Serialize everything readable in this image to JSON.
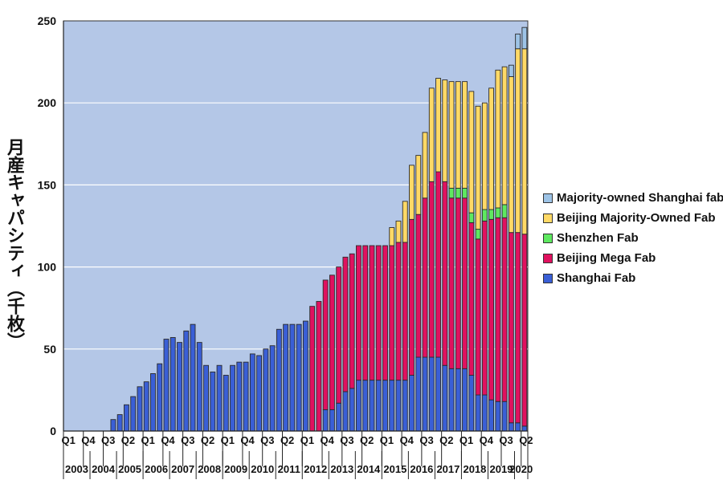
{
  "chart_data": {
    "type": "bar",
    "stacked": true,
    "title": "",
    "xlabel": "",
    "ylabel": "月産キャパシティ（千枚）",
    "ylim": [
      0,
      250
    ],
    "yticks": [
      0,
      50,
      100,
      150,
      200,
      250
    ],
    "grid": true,
    "legend_position": "right",
    "plot_background": "#b4c7e7",
    "x_quarter_labels": [
      "Q1",
      "Q4",
      "Q3",
      "Q2",
      "Q1",
      "Q4",
      "Q3",
      "Q2",
      "Q1",
      "Q4",
      "Q3",
      "Q2",
      "Q1",
      "Q4",
      "Q3",
      "Q2",
      "Q1",
      "Q4",
      "Q3",
      "Q2",
      "Q1",
      "Q4",
      "Q3",
      "Q2"
    ],
    "x_year_labels": [
      "2003",
      "2004",
      "2005",
      "2006",
      "2007",
      "2008",
      "2009",
      "2010",
      "2011",
      "2012",
      "2013",
      "2014",
      "2015",
      "2016",
      "2017",
      "2018",
      "2019",
      "2020"
    ],
    "categories": [
      "2003Q1",
      "2003Q2",
      "2003Q3",
      "2003Q4",
      "2004Q1",
      "2004Q2",
      "2004Q3",
      "2004Q4",
      "2005Q1",
      "2005Q2",
      "2005Q3",
      "2005Q4",
      "2006Q1",
      "2006Q2",
      "2006Q3",
      "2006Q4",
      "2007Q1",
      "2007Q2",
      "2007Q3",
      "2007Q4",
      "2008Q1",
      "2008Q2",
      "2008Q3",
      "2008Q4",
      "2009Q1",
      "2009Q2",
      "2009Q3",
      "2009Q4",
      "2010Q1",
      "2010Q2",
      "2010Q3",
      "2010Q4",
      "2011Q1",
      "2011Q2",
      "2011Q3",
      "2011Q4",
      "2012Q1",
      "2012Q2",
      "2012Q3",
      "2012Q4",
      "2013Q1",
      "2013Q2",
      "2013Q3",
      "2013Q4",
      "2014Q1",
      "2014Q2",
      "2014Q3",
      "2014Q4",
      "2015Q1",
      "2015Q2",
      "2015Q3",
      "2015Q4",
      "2016Q1",
      "2016Q2",
      "2016Q3",
      "2016Q4",
      "2017Q1",
      "2017Q2",
      "2017Q3",
      "2017Q4",
      "2018Q1",
      "2018Q2",
      "2018Q3",
      "2018Q4",
      "2019Q1",
      "2019Q2",
      "2019Q3",
      "2019Q4",
      "2020Q1",
      "2020Q2"
    ],
    "series": [
      {
        "name": "Shanghai Fab",
        "color": "#3a5fd6",
        "values": [
          0,
          0,
          0,
          0,
          0,
          0,
          0,
          7,
          10,
          16,
          21,
          27,
          30,
          35,
          41,
          56,
          57,
          54,
          61,
          65,
          54,
          40,
          36,
          40,
          34,
          40,
          42,
          42,
          47,
          46,
          50,
          52,
          62,
          65,
          65,
          65,
          67,
          0,
          0,
          13,
          13,
          17,
          24,
          26,
          31,
          31,
          31,
          31,
          31,
          31,
          31,
          31,
          34,
          45,
          45,
          45,
          45,
          40,
          38,
          38,
          38,
          34,
          22,
          22,
          19,
          18,
          18,
          5,
          5,
          3
        ]
      },
      {
        "name": "Beijing Mega Fab",
        "color": "#e0115f",
        "values": [
          0,
          0,
          0,
          0,
          0,
          0,
          0,
          0,
          0,
          0,
          0,
          0,
          0,
          0,
          0,
          0,
          0,
          0,
          0,
          0,
          0,
          0,
          0,
          0,
          0,
          0,
          0,
          0,
          0,
          0,
          0,
          0,
          0,
          0,
          0,
          0,
          0,
          76,
          79,
          79,
          82,
          83,
          82,
          82,
          82,
          82,
          82,
          82,
          82,
          82,
          84,
          84,
          95,
          87,
          97,
          107,
          113,
          112,
          104,
          104,
          104,
          93,
          95,
          106,
          110,
          112,
          112,
          116,
          116,
          117
        ]
      },
      {
        "name": "Shenzhen Fab",
        "color": "#5ee860",
        "values": [
          0,
          0,
          0,
          0,
          0,
          0,
          0,
          0,
          0,
          0,
          0,
          0,
          0,
          0,
          0,
          0,
          0,
          0,
          0,
          0,
          0,
          0,
          0,
          0,
          0,
          0,
          0,
          0,
          0,
          0,
          0,
          0,
          0,
          0,
          0,
          0,
          0,
          0,
          0,
          0,
          0,
          0,
          0,
          0,
          0,
          0,
          0,
          0,
          0,
          0,
          0,
          0,
          0,
          0,
          0,
          0,
          0,
          0,
          6,
          6,
          6,
          6,
          6,
          7,
          6,
          6,
          8,
          0,
          0,
          0
        ]
      },
      {
        "name": "Beijing Majority-Owned Fab",
        "color": "#ffd966",
        "values": [
          0,
          0,
          0,
          0,
          0,
          0,
          0,
          0,
          0,
          0,
          0,
          0,
          0,
          0,
          0,
          0,
          0,
          0,
          0,
          0,
          0,
          0,
          0,
          0,
          0,
          0,
          0,
          0,
          0,
          0,
          0,
          0,
          0,
          0,
          0,
          0,
          0,
          0,
          0,
          0,
          0,
          0,
          0,
          0,
          0,
          0,
          0,
          0,
          0,
          11,
          13,
          25,
          33,
          36,
          40,
          57,
          57,
          62,
          65,
          65,
          65,
          74,
          75,
          65,
          74,
          84,
          84,
          95,
          112,
          113
        ]
      },
      {
        "name": "Majority-owned Shanghai fab",
        "color": "#9dc3e6",
        "values": [
          0,
          0,
          0,
          0,
          0,
          0,
          0,
          0,
          0,
          0,
          0,
          0,
          0,
          0,
          0,
          0,
          0,
          0,
          0,
          0,
          0,
          0,
          0,
          0,
          0,
          0,
          0,
          0,
          0,
          0,
          0,
          0,
          0,
          0,
          0,
          0,
          0,
          0,
          0,
          0,
          0,
          0,
          0,
          0,
          0,
          0,
          0,
          0,
          0,
          0,
          0,
          0,
          0,
          0,
          0,
          0,
          0,
          0,
          0,
          0,
          0,
          0,
          0,
          0,
          0,
          0,
          0,
          7,
          9,
          13
        ]
      }
    ]
  },
  "legend": {
    "items": [
      {
        "label": "Majority-owned Shanghai fab",
        "color": "#9dc3e6"
      },
      {
        "label": "Beijing Majority-Owned Fab",
        "color": "#ffd966"
      },
      {
        "label": "Shenzhen Fab",
        "color": "#5ee860"
      },
      {
        "label": "Beijing Mega Fab",
        "color": "#e0115f"
      },
      {
        "label": "Shanghai Fab",
        "color": "#3a5fd6"
      }
    ]
  },
  "y_axis_title": "月産キャパシティ（千枚）"
}
